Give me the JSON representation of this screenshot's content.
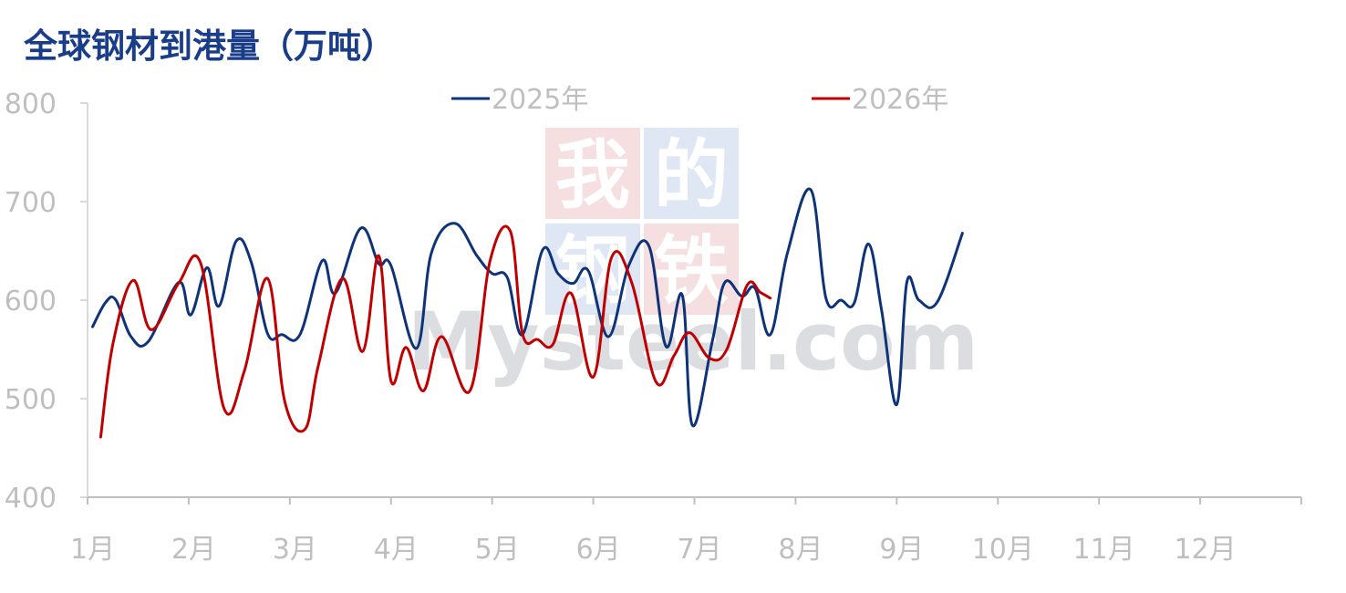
{
  "chart_data": {
    "type": "line",
    "title": "全球钢材到港量（万吨）",
    "ylim": [
      400,
      800
    ],
    "yticks": [
      "400",
      "500",
      "600",
      "700",
      "800"
    ],
    "categories": [
      "1月",
      "2月",
      "3月",
      "4月",
      "5月",
      "6月",
      "7月",
      "8月",
      "9月",
      "10月",
      "11月",
      "12月"
    ],
    "legend_position": "top",
    "grid": false,
    "series": [
      {
        "name": "2025年",
        "color": "#0e3378",
        "x": [
          0.05,
          0.18,
          0.28,
          0.43,
          0.6,
          0.9,
          1.02,
          1.18,
          1.3,
          1.47,
          1.62,
          1.78,
          1.92,
          2.1,
          2.32,
          2.45,
          2.7,
          2.88,
          3.0,
          3.25,
          3.4,
          3.63,
          3.85,
          4.0,
          4.15,
          4.3,
          4.5,
          4.65,
          4.8,
          4.95,
          5.15,
          5.35,
          5.55,
          5.72,
          5.88,
          5.98,
          6.18,
          6.3,
          6.47,
          6.6,
          6.75,
          6.92,
          7.15,
          7.3,
          7.45,
          7.58,
          7.72,
          7.85,
          8.0,
          8.1,
          8.22,
          8.4,
          8.65,
          8.82,
          9.0,
          9.15,
          9.42,
          9.65,
          9.95,
          10.1,
          10.3,
          10.48,
          10.62,
          10.9,
          11.1,
          11.25,
          11.4,
          11.55,
          11.7,
          11.9,
          12.05
        ],
        "values": [
          573,
          598,
          600,
          563,
          558,
          618,
          585,
          633,
          594,
          660,
          638,
          566,
          565,
          565,
          640,
          607,
          673,
          637,
          635,
          551,
          648,
          678,
          645,
          627,
          623,
          565,
          651,
          627,
          617,
          630,
          563,
          635,
          655,
          553,
          605,
          473,
          560,
          618,
          604,
          612,
          565,
          648,
          712,
          602,
          600,
          597,
          657,
          590,
          494,
          618,
          600,
          598,
          668,
          668,
          668,
          668,
          668,
          668,
          668,
          668,
          668,
          668,
          668,
          668,
          668,
          668,
          668,
          668,
          668,
          668,
          668
        ]
      },
      {
        "name": "2026年",
        "color": "#c00000",
        "x": [
          0.13,
          0.25,
          0.45,
          0.63,
          0.9,
          1.12,
          1.35,
          1.55,
          1.78,
          1.95,
          2.15,
          2.28,
          2.52,
          2.72,
          2.88,
          3.0,
          3.15,
          3.32,
          3.5,
          3.78,
          3.98,
          4.18,
          4.3,
          4.45,
          4.6,
          4.78,
          5.0,
          5.18,
          5.38,
          5.62,
          5.8,
          5.95,
          6.15,
          6.32,
          6.52,
          6.65,
          6.75,
          6.92,
          7.1,
          7.3,
          7.5,
          7.75,
          7.92
        ],
        "values": [
          461,
          555,
          620,
          570,
          617,
          637,
          490,
          528,
          622,
          497,
          469,
          533,
          622,
          548,
          645,
          518,
          552,
          508,
          563,
          508,
          640,
          670,
          566,
          560,
          555,
          607,
          522,
          643,
          618,
          517,
          544,
          567,
          541,
          550,
          615,
          608,
          602,
          602,
          602,
          602,
          602,
          602,
          602
        ]
      }
    ]
  },
  "watermark": {
    "chars": [
      "我",
      "的",
      "钢",
      "铁"
    ],
    "text": "Mysteel.com",
    "colors": [
      "#e8a5a8",
      "#a9bbe0"
    ]
  }
}
